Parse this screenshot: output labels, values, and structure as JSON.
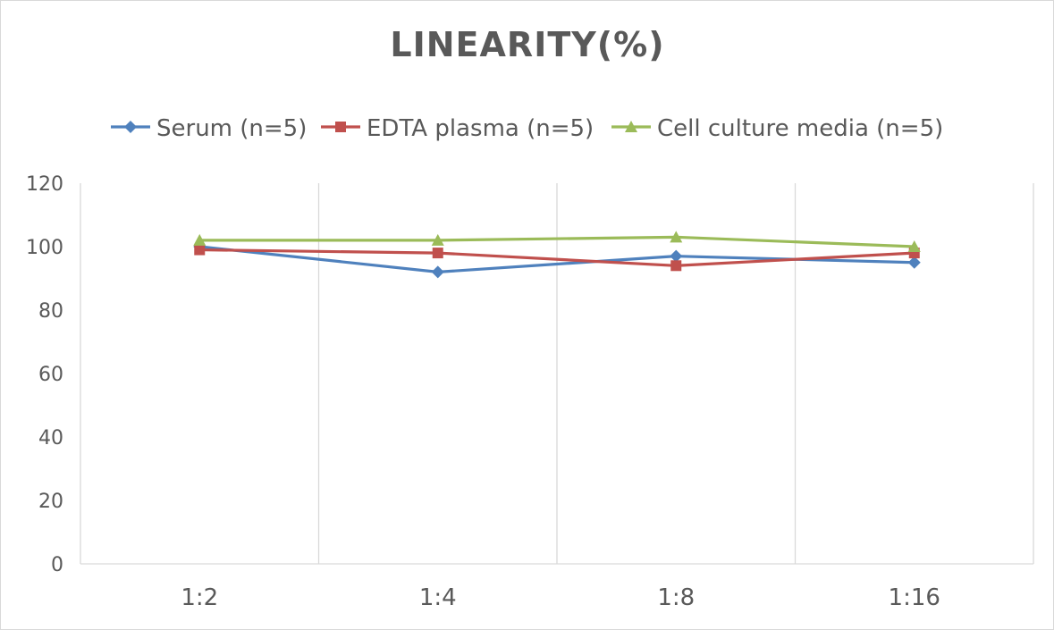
{
  "chart_data": {
    "type": "line",
    "title": "LINEARITY(%)",
    "xlabel": "",
    "ylabel": "",
    "categories": [
      "1:2",
      "1:4",
      "1:8",
      "1:16"
    ],
    "ylim": [
      0,
      120
    ],
    "yticks": [
      0,
      20,
      40,
      60,
      80,
      100,
      120
    ],
    "grid": "vertical",
    "legend_position": "top",
    "series": [
      {
        "name": "Serum (n=5)",
        "values": [
          100,
          92,
          97,
          95
        ],
        "color": "#4f81bd",
        "marker": "diamond"
      },
      {
        "name": "EDTA plasma (n=5)",
        "values": [
          99,
          98,
          94,
          98
        ],
        "color": "#c0504d",
        "marker": "square"
      },
      {
        "name": "Cell culture media (n=5)",
        "values": [
          102,
          102,
          103,
          100
        ],
        "color": "#9bbb59",
        "marker": "triangle"
      }
    ]
  }
}
